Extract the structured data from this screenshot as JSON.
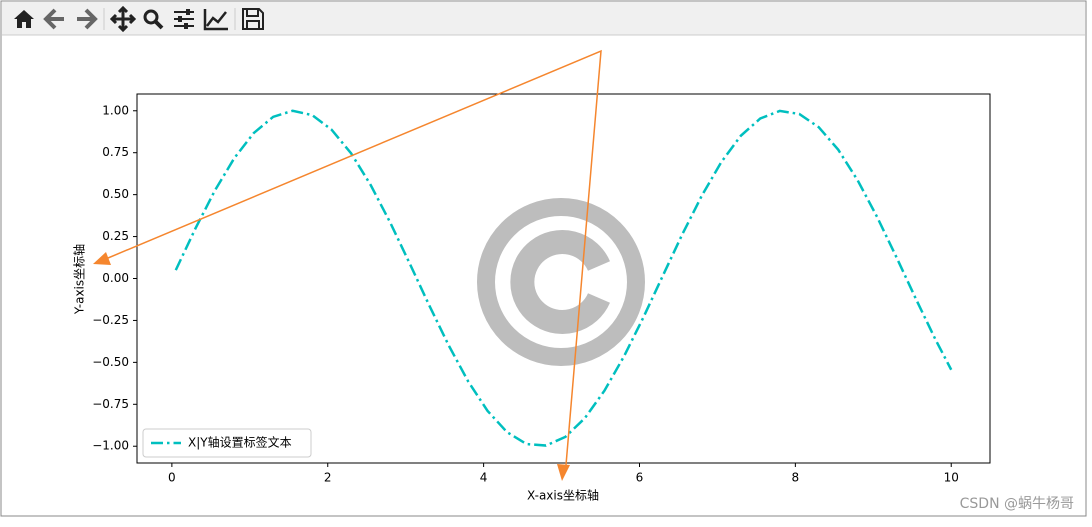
{
  "chart_data": {
    "type": "line",
    "xlabel": "X-axis坐标轴",
    "ylabel": "Y-axis坐标轴",
    "x": [
      0.05,
      0.3,
      0.55,
      0.8,
      1.05,
      1.3,
      1.55,
      1.8,
      2.05,
      2.3,
      2.55,
      2.8,
      3.05,
      3.3,
      3.55,
      3.8,
      4.05,
      4.3,
      4.55,
      4.8,
      5.05,
      5.3,
      5.55,
      5.8,
      6.05,
      6.3,
      6.55,
      6.8,
      7.05,
      7.3,
      7.55,
      7.8,
      8.05,
      8.3,
      8.55,
      8.8,
      9.05,
      9.3,
      9.55,
      9.8,
      10.0
    ],
    "series": [
      {
        "name": "X|Y轴设置标签文本",
        "color": "#00bfbf",
        "line_style": "dashdot",
        "values": [
          0.05,
          0.296,
          0.523,
          0.717,
          0.867,
          0.964,
          1.0,
          0.974,
          0.887,
          0.746,
          0.558,
          0.335,
          0.091,
          -0.158,
          -0.397,
          -0.612,
          -0.789,
          -0.916,
          -0.987,
          -0.996,
          -0.944,
          -0.832,
          -0.669,
          -0.465,
          -0.232,
          0.017,
          0.264,
          0.494,
          0.694,
          0.851,
          0.954,
          0.999,
          0.981,
          0.902,
          0.768,
          0.585,
          0.366,
          0.124,
          -0.125,
          -0.366,
          -0.544
        ]
      }
    ],
    "xlim": [
      -0.4475,
      10.4975
    ],
    "xticks": [
      0,
      2,
      4,
      6,
      8,
      10
    ],
    "ylim": [
      -1.1,
      1.1
    ],
    "yticks": [
      {
        "value": -1,
        "label": "−1.00"
      },
      {
        "value": -0.75,
        "label": "−0.75"
      },
      {
        "value": -0.5,
        "label": "−0.50"
      },
      {
        "value": -0.25,
        "label": "−0.25"
      },
      {
        "value": 0,
        "label": "0.00"
      },
      0.25,
      {
        "value": 0.5,
        "label": "0.50"
      },
      0.75,
      {
        "value": 1,
        "label": "1.00"
      }
    ],
    "legend": "lower left"
  },
  "watermark": "CSDN @蜗牛杨哥"
}
